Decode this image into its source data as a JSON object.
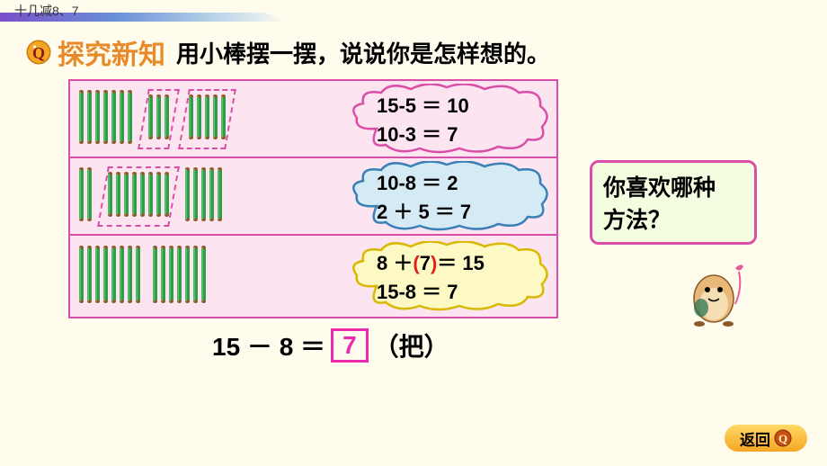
{
  "header": {
    "title": "十几减8、7",
    "bar_gradient": [
      "#7b4fc9",
      "#6a8fd8",
      "#b8d4e8",
      "#fffcee"
    ]
  },
  "title": {
    "main": "探究新知",
    "main_color": "#e88a2a",
    "sub": "用小棒摆一摆，说说你是怎样想的。"
  },
  "methods_box": {
    "border_color": "#d94fa8",
    "bg_color": "#fce4f0",
    "stick_color": "#2e9e4a",
    "stick_cap": "#8b5a2b"
  },
  "method1": {
    "sticks": {
      "groups": [
        7,
        3,
        5
      ],
      "dashed": [
        1,
        2
      ]
    },
    "cloud_fill": "#fce4f0",
    "cloud_stroke": "#d94fa8",
    "line1": "15-5 ＝ 10",
    "line2": "10-3 ＝ 7"
  },
  "method2": {
    "sticks": {
      "groups": [
        2,
        8,
        5
      ],
      "dashed": [
        1
      ]
    },
    "cloud_fill": "#d4ebf5",
    "cloud_stroke": "#3a7fb5",
    "line1": "10-8 ＝ 2",
    "line2": "2 ＋ 5 ＝ 7"
  },
  "method3": {
    "sticks": {
      "groups": [
        8,
        7
      ],
      "dashed": []
    },
    "cloud_fill": "#fcf9c4",
    "cloud_stroke": "#d9b800",
    "line1_pre": "8 ＋",
    "line1_paren_l": "(",
    "line1_mid": "7",
    "line1_paren_r": ")",
    "line1_post": "＝ 15",
    "line2": "15-8 ＝ 7"
  },
  "answer": {
    "expr": "15 － 8 ＝",
    "value": "7",
    "value_color": "#ec2bb1",
    "unit": "（把）"
  },
  "question": {
    "text_l1": "你喜欢哪种",
    "text_l2": "方法？",
    "bg": "#f5fde1",
    "border": "#d94fa8"
  },
  "back_button": {
    "label": "返回",
    "bg_top": "#ffd966",
    "bg_bottom": "#f5a623"
  }
}
